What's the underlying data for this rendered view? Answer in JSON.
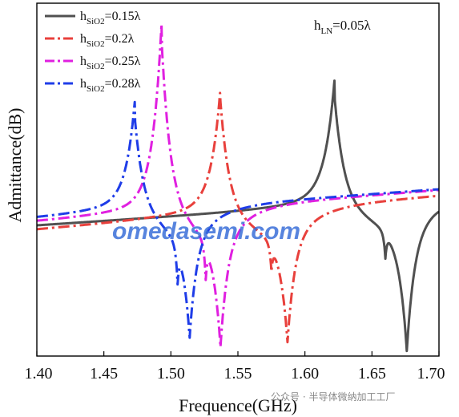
{
  "chart_data": {
    "type": "line",
    "title": "",
    "xlabel": "Frequence(GHz)",
    "ylabel": "Admittance(dB)",
    "xlim": [
      1.4,
      1.7
    ],
    "x_ticks": [
      "1.40",
      "1.45",
      "1.50",
      "1.55",
      "1.60",
      "1.65",
      "1.70"
    ],
    "y_ticks_shown": false,
    "annotation": {
      "main": "h",
      "sub": "LN",
      "rest": "=0.05λ"
    },
    "legend_position": "top-left",
    "series": [
      {
        "name_main": "h",
        "name_sub": "SiO2",
        "name_rest": "=0.15λ",
        "color": "#505050",
        "style": "solid",
        "resonance_ghz": 1.622,
        "antiresonance_ghz": 1.676,
        "spurious_ghz": 1.66
      },
      {
        "name_main": "h",
        "name_sub": "SiO2",
        "name_rest": "=0.2λ",
        "color": "#e8403c",
        "style": "dash-dot",
        "resonance_ghz": 1.537,
        "antiresonance_ghz": 1.587,
        "spurious_ghz": 1.575
      },
      {
        "name_main": "h",
        "name_sub": "SiO2",
        "name_rest": "=0.25λ",
        "color": "#e020e0",
        "style": "dash-dot",
        "resonance_ghz": 1.493,
        "antiresonance_ghz": 1.537,
        "spurious_ghz": 1.526
      },
      {
        "name_main": "h",
        "name_sub": "SiO2",
        "name_rest": "=0.28λ",
        "color": "#1f3de8",
        "style": "dash-dot",
        "resonance_ghz": 1.473,
        "antiresonance_ghz": 1.514,
        "spurious_ghz": 1.505
      }
    ]
  },
  "watermark": "omedasemi.com",
  "credit": "公众号 · 半导体微纳加工工厂"
}
